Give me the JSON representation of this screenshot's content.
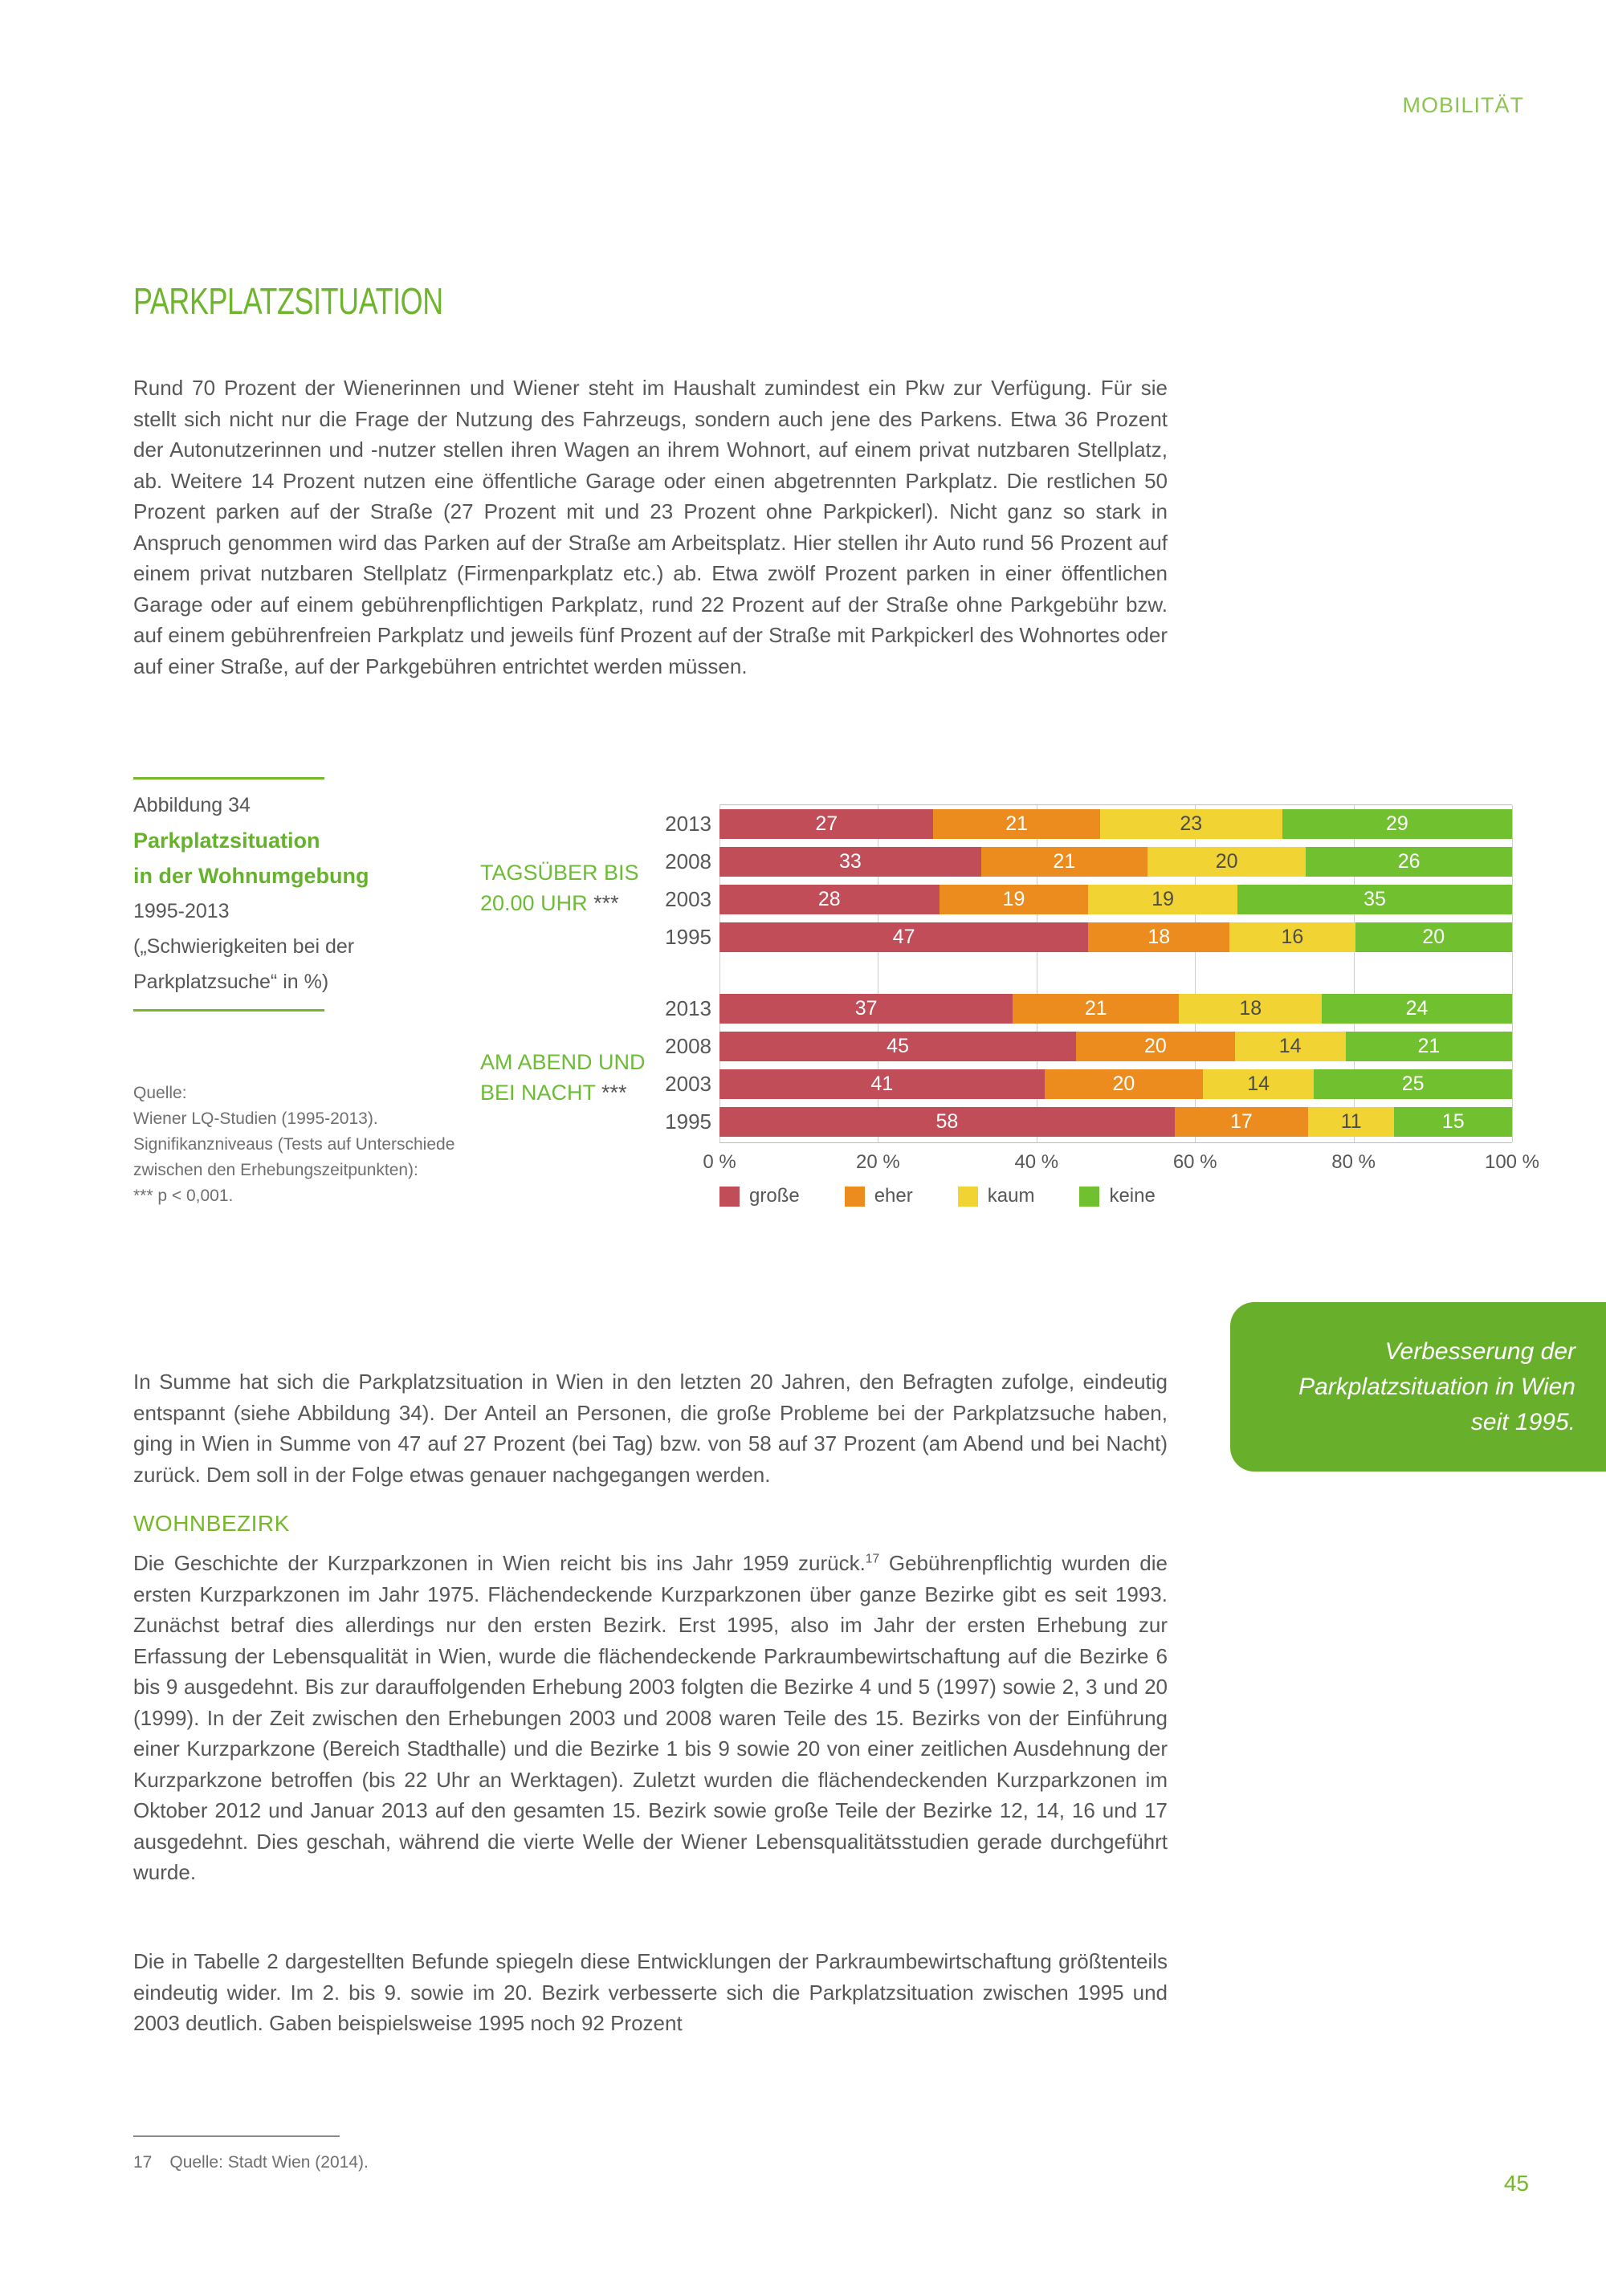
{
  "page": {
    "header": "MOBILITÄT",
    "page_number": "45"
  },
  "title": "PARKPLATZSITUATION",
  "paragraphs": {
    "intro": "Rund 70 Prozent der Wienerinnen und Wiener steht im Haushalt zumindest ein Pkw zur Verfügung. Für sie stellt sich nicht nur die Frage der Nutzung des Fahrzeugs, sondern auch jene des Parkens. Etwa 36 Prozent der Autonutzerinnen und -nutzer stellen ihren Wagen an ihrem Wohnort, auf einem privat nutzbaren Stellplatz, ab. Weitere 14 Prozent nutzen eine öffentliche Garage oder einen abgetrennten Parkplatz. Die restlichen 50 Prozent parken auf der Straße (27 Prozent mit und 23 Prozent ohne Parkpickerl). Nicht ganz so stark in Anspruch genommen wird das Parken auf der Straße am Arbeitsplatz. Hier stellen ihr Auto rund 56 Prozent auf einem privat nutzbaren Stellplatz (Firmenparkplatz etc.) ab. Etwa zwölf Prozent parken in einer öffentlichen Garage oder auf einem gebührenpflichtigen Parkplatz, rund 22 Prozent auf der Straße ohne Parkgebühr bzw. auf einem gebührenfreien Parkplatz und jeweils fünf Prozent auf der Straße mit Parkpickerl des Wohnortes oder auf einer Straße, auf der Parkgebühren entrichtet werden müssen.",
    "summary": "In Summe hat sich die Parkplatzsituation in Wien in den letzten 20 Jahren, den Befragten zufolge, eindeutig entspannt (siehe Abbildung 34). Der Anteil an Personen, die große Probleme bei der Parkplatzsuche haben, ging in Wien in Summe von 47 auf 27 Prozent (bei Tag) bzw. von 58 auf 37 Prozent (am Abend und bei Nacht) zurück. Dem soll in der Folge etwas genauer nachgegangen werden."
  },
  "figure": {
    "label": "Abbildung 34",
    "title_line1": "Parkplatzsituation",
    "title_line2": "in der Wohnumgebung",
    "subtitle_line1": "1995-2013",
    "subtitle_line2": "(„Schwierigkeiten bei der",
    "subtitle_line3": "Parkplatzsuche“ in %)",
    "source": [
      "Quelle:",
      "Wiener LQ-Studien (1995-2013).",
      "Signifikanzniveaus (Tests auf Unterschiede",
      "zwischen den Erhebungszeitpunkten):",
      "*** p < 0,001."
    ]
  },
  "chart_data": {
    "type": "bar",
    "subtype": "horizontal-stacked",
    "unit": "%",
    "xlim": [
      0,
      100
    ],
    "x_ticks": [
      "0 %",
      "20 %",
      "40 %",
      "60 %",
      "80 %",
      "100 %"
    ],
    "legend": [
      "große",
      "eher",
      "kaum",
      "keine"
    ],
    "colors": [
      "#c04d58",
      "#ec8b1e",
      "#f1d334",
      "#70c02f"
    ],
    "legend_position": "bottom",
    "grid": true,
    "groups": [
      {
        "label_line1": "TAGSÜBER BIS",
        "label_line2": "20.00 UHR",
        "significance": "***",
        "rows": [
          {
            "year": "2013",
            "values": [
              27,
              21,
              23,
              29
            ]
          },
          {
            "year": "2008",
            "values": [
              33,
              21,
              20,
              26
            ]
          },
          {
            "year": "2003",
            "values": [
              28,
              19,
              19,
              35
            ]
          },
          {
            "year": "1995",
            "values": [
              47,
              18,
              16,
              20
            ]
          }
        ]
      },
      {
        "label_line1": "AM ABEND UND",
        "label_line2": "BEI NACHT",
        "significance": "***",
        "rows": [
          {
            "year": "2013",
            "values": [
              37,
              21,
              18,
              24
            ]
          },
          {
            "year": "2008",
            "values": [
              45,
              20,
              14,
              21
            ]
          },
          {
            "year": "2003",
            "values": [
              41,
              20,
              14,
              25
            ]
          },
          {
            "year": "1995",
            "values": [
              58,
              17,
              11,
              15
            ]
          }
        ]
      }
    ]
  },
  "callout": {
    "text": "Verbesserung der Parkplatzsituation in Wien seit 1995."
  },
  "wohnbezirk": {
    "heading": "WOHNBEZIRK",
    "para1_before_ref": "Die Geschichte der Kurzparkzonen in Wien reicht bis ins Jahr 1959 zurück.",
    "footnote_ref": "17",
    "para1_after_ref": " Gebührenpflichtig wurden die ersten Kurzparkzonen im Jahr 1975. Flächendeckende Kurzparkzonen über ganze Bezirke gibt es seit 1993. Zunächst betraf dies allerdings nur den ersten Bezirk. Erst 1995, also im Jahr der ersten Erhebung zur Erfassung der Lebensqualität in Wien, wurde die flächendeckende Parkraumbewirtschaftung auf die Bezirke 6 bis 9 ausgedehnt. Bis zur darauffolgenden Erhebung 2003 folgten die Bezirke 4 und 5 (1997) sowie 2, 3 und 20 (1999). In der Zeit zwischen den Erhebungen 2003 und 2008 waren Teile des 15. Bezirks von der Einführung einer Kurzparkzone (Bereich Stadthalle) und die Bezirke 1 bis 9 sowie 20 von einer zeitlichen Ausdehnung der Kurzparkzone betroffen (bis 22 Uhr an Werktagen). Zuletzt wurden die flächendeckenden Kurzparkzonen im Oktober 2012 und Januar 2013 auf den gesamten 15. Bezirk sowie große Teile der Bezirke 12, 14, 16 und 17 ausgedehnt. Dies geschah, während die vierte Welle der Wiener Lebensqualitätsstudien gerade durchgeführt wurde.",
    "para2": "Die in Tabelle 2 dargestellten Befunde spiegeln diese Entwicklungen der Parkraumbewirtschaftung größtenteils eindeutig wider. Im 2. bis 9. sowie im 20. Bezirk verbesserte sich die Parkplatzsituation zwischen 1995 und 2003 deutlich. Gaben beispielsweise 1995 noch 92 Prozent"
  },
  "footnote": {
    "number": "17",
    "text": "Quelle: Stadt Wien (2014)."
  }
}
